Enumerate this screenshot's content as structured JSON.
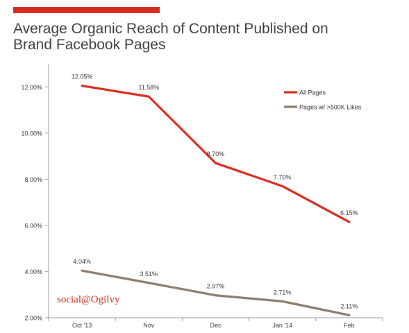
{
  "colors": {
    "accent": "#d42b1e",
    "series_all": "#d42b1e",
    "series_large": "#8a7a6a",
    "axis": "#9a9a9a"
  },
  "title_lines": [
    "Average Organic Reach of Content Published on",
    "Brand Facebook Pages"
  ],
  "logo_text": "social@Ogilvy",
  "chart_data": {
    "type": "line",
    "title": "Average Organic Reach of Content Published on Brand Facebook Pages",
    "categories": [
      "Oct '13",
      "Nov",
      "Dec",
      "Jan '14",
      "Feb"
    ],
    "y_ticks": [
      "2.00%",
      "4.00%",
      "6.00%",
      "8.00%",
      "10.00%",
      "12.00%"
    ],
    "ylim": [
      2,
      13
    ],
    "grid": false,
    "legend_position": "top-right",
    "series": [
      {
        "name": "All Pages",
        "values": [
          12.05,
          11.58,
          8.7,
          7.7,
          6.15
        ],
        "labels": [
          "12.05%",
          "11.58%",
          "8.70%",
          "7.70%",
          "6.15%"
        ]
      },
      {
        "name": "Pages w/ >500K Likes",
        "values": [
          4.04,
          3.51,
          2.97,
          2.71,
          2.11
        ],
        "labels": [
          "4.04%",
          "3.51%",
          "2.97%",
          "2.71%",
          "2.11%"
        ]
      }
    ]
  }
}
